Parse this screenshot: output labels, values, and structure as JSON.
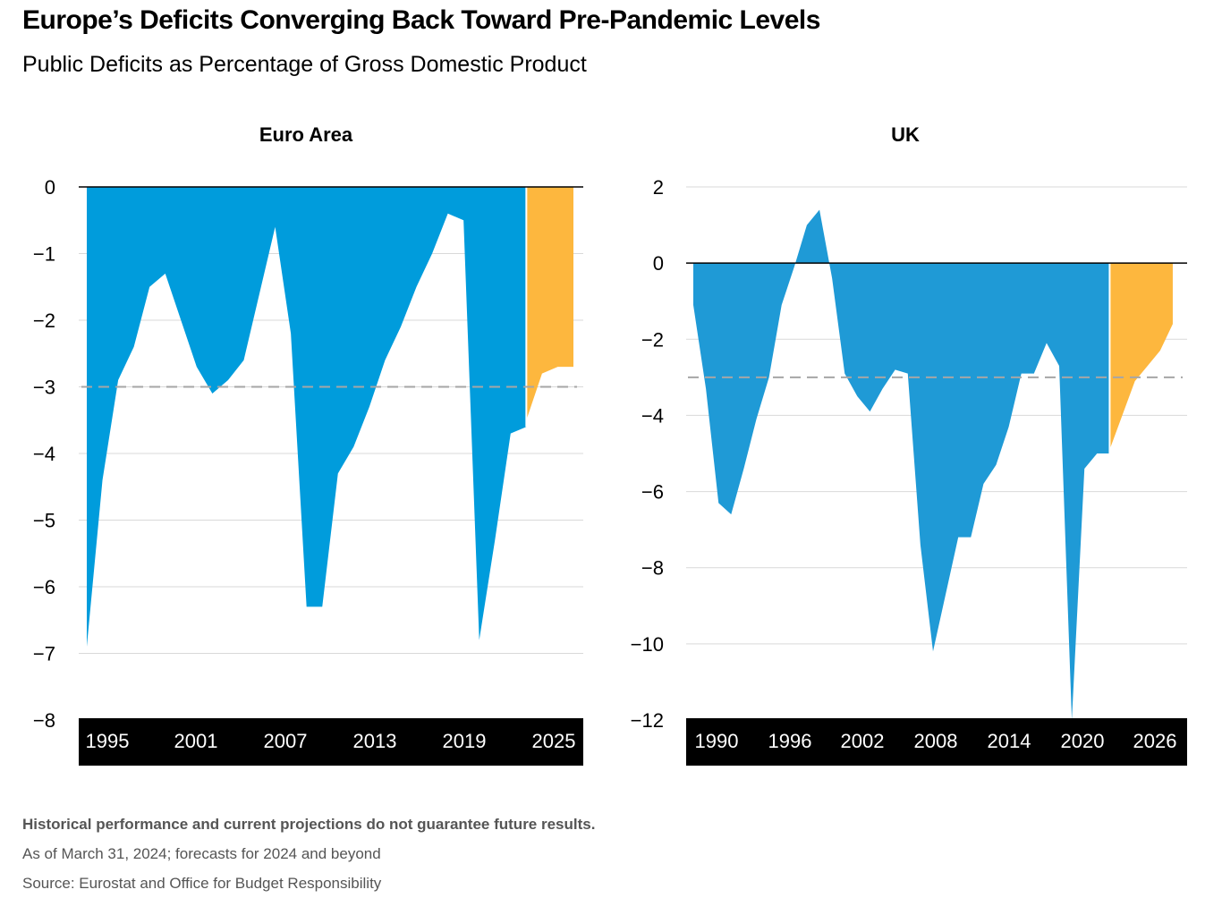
{
  "title": "Europe’s Deficits Converging Back Toward Pre-Pandemic Levels",
  "subtitle": "Public Deficits as Percentage of Gross Domestic Product",
  "notes": {
    "disclaimer": "Historical performance and current projections do not guarantee future results.",
    "as_of": "As of March 31, 2024; forecasts for 2024 and beyond",
    "source": "Source: Eurostat and Office for Budget Responsibility"
  },
  "colors": {
    "actual": "#009cdc",
    "actual_uk": "#1f9ad6",
    "forecast": "#fdb73e",
    "axis_band": "#000000",
    "grid": "#d9d9d9",
    "reference_line": "#a6a6a6"
  },
  "chart_data": [
    {
      "type": "area",
      "title": "Euro Area",
      "ylim": [
        -8,
        0
      ],
      "yticks": [
        0,
        -1,
        -2,
        -3,
        -4,
        -5,
        -6,
        -7,
        -8
      ],
      "ytick_labels": [
        "0",
        "−1",
        "−2",
        "−3",
        "−4",
        "−5",
        "−6",
        "−7",
        "−8"
      ],
      "xticks": [
        "1995",
        "2001",
        "2007",
        "2013",
        "2019",
        "2025"
      ],
      "xlim": [
        1995,
        2026
      ],
      "reference_line": -3,
      "grid": true,
      "series": [
        {
          "x": [
            1995,
            1996,
            1997,
            1998,
            1999,
            2000,
            2001,
            2002,
            2003,
            2004,
            2005,
            2006,
            2007,
            2008,
            2009,
            2010,
            2011,
            2012,
            2013,
            2014,
            2015,
            2016,
            2017,
            2018,
            2019,
            2020,
            2021,
            2022,
            2023
          ],
          "values": [
            -6.9,
            -4.4,
            -2.9,
            -2.4,
            -1.5,
            -1.3,
            -2.0,
            -2.7,
            -3.1,
            -2.9,
            -2.6,
            -1.6,
            -0.6,
            -2.2,
            -6.3,
            -6.3,
            -4.3,
            -3.9,
            -3.3,
            -2.6,
            -2.1,
            -1.5,
            -1.0,
            -0.4,
            -0.5,
            -6.8,
            -5.3,
            -3.7,
            -3.6
          ]
        },
        {
          "x": [
            2023,
            2024,
            2025,
            2026
          ],
          "values": [
            -3.5,
            -2.8,
            -2.7,
            -2.7
          ]
        }
      ]
    },
    {
      "type": "area",
      "title": "UK",
      "ylim": [
        -12,
        2
      ],
      "yticks": [
        2,
        0,
        -2,
        -4,
        -6,
        -8,
        -10,
        -12
      ],
      "ytick_labels": [
        "2",
        "0",
        "−2",
        "−4",
        "−6",
        "−8",
        "−10",
        "−12"
      ],
      "xticks": [
        "1990",
        "1996",
        "2002",
        "2008",
        "2014",
        "2020",
        "2026"
      ],
      "xlim": [
        1990,
        2028.5
      ],
      "reference_line": -3,
      "grid": true,
      "series": [
        {
          "x": [
            1990,
            1991,
            1992,
            1993,
            1994,
            1995,
            1996,
            1997,
            1998,
            1999,
            2000,
            2001,
            2002,
            2003,
            2004,
            2005,
            2006,
            2007,
            2008,
            2009,
            2010,
            2011,
            2012,
            2013,
            2014,
            2015,
            2016,
            2017,
            2018,
            2019,
            2020,
            2021,
            2022,
            2023
          ],
          "values": [
            -1.1,
            -3.3,
            -6.3,
            -6.6,
            -5.4,
            -4.1,
            -3.0,
            -1.1,
            -0.1,
            1.0,
            1.4,
            -0.4,
            -2.9,
            -3.5,
            -3.9,
            -3.3,
            -2.8,
            -2.9,
            -7.4,
            -10.2,
            -8.7,
            -7.2,
            -7.2,
            -5.8,
            -5.3,
            -4.3,
            -2.9,
            -2.9,
            -2.1,
            -2.7,
            -12.0,
            -5.4,
            -5.0,
            -5.0
          ]
        },
        {
          "x": [
            2023,
            2024,
            2025,
            2026,
            2027,
            2028
          ],
          "values": [
            -4.9,
            -4.0,
            -3.1,
            -2.7,
            -2.3,
            -1.6
          ]
        }
      ]
    }
  ]
}
